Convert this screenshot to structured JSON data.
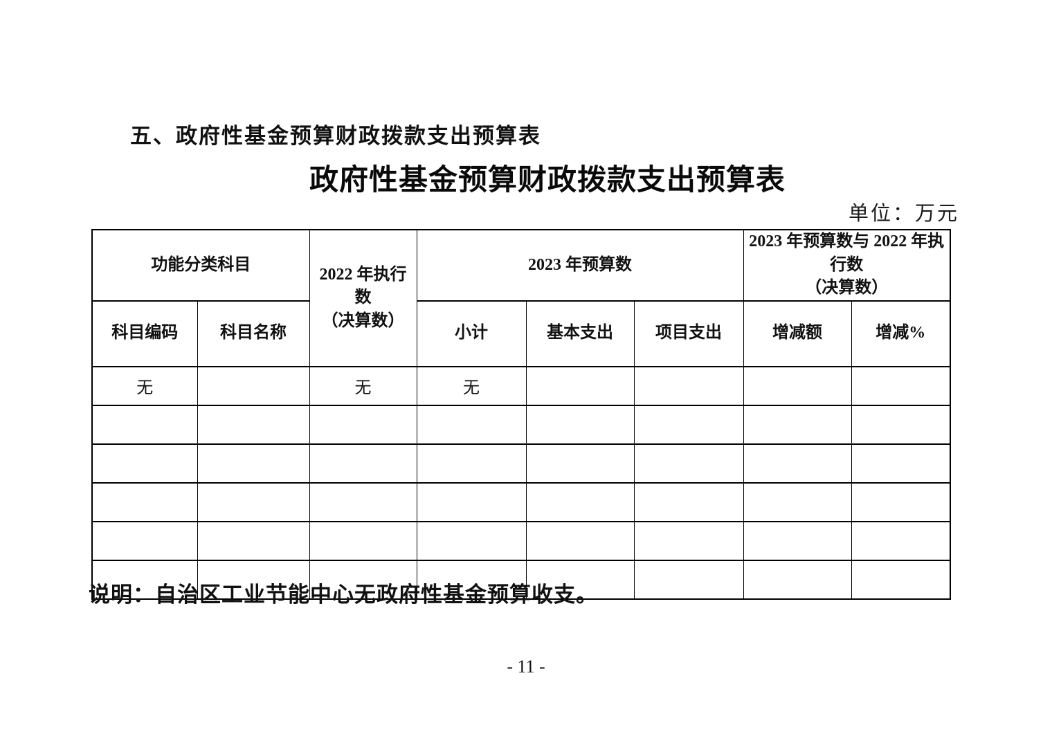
{
  "page": {
    "section_heading": "五、政府性基金预算财政拨款支出预算表",
    "table_title": "政府性基金预算财政拨款支出预算表",
    "unit_label": "单位：万元",
    "note": "说明：自治区工业节能中心无政府性基金预算收支。",
    "page_number": "- 11 -"
  },
  "table": {
    "header": {
      "functional_category": "功能分类科目",
      "exec_2022_line1": "2022 年执行数",
      "exec_2022_line2": "（决算数）",
      "budget_2023": "2023 年预算数",
      "comparison_line1": "2023 年预算数与 2022 年执行数",
      "comparison_line2": "（决算数）",
      "subject_code": "科目编码",
      "subject_name": "科目名称",
      "subtotal": "小计",
      "basic_expenditure": "基本支出",
      "project_expenditure": "项目支出",
      "change_amount": "增减额",
      "change_percent": "增减%"
    },
    "rows": [
      [
        "无",
        "",
        "无",
        "无",
        "",
        "",
        "",
        ""
      ],
      [
        "",
        "",
        "",
        "",
        "",
        "",
        "",
        ""
      ],
      [
        "",
        "",
        "",
        "",
        "",
        "",
        "",
        ""
      ],
      [
        "",
        "",
        "",
        "",
        "",
        "",
        "",
        ""
      ],
      [
        "",
        "",
        "",
        "",
        "",
        "",
        "",
        ""
      ],
      [
        "",
        "",
        "",
        "",
        "",
        "",
        "",
        ""
      ]
    ]
  }
}
